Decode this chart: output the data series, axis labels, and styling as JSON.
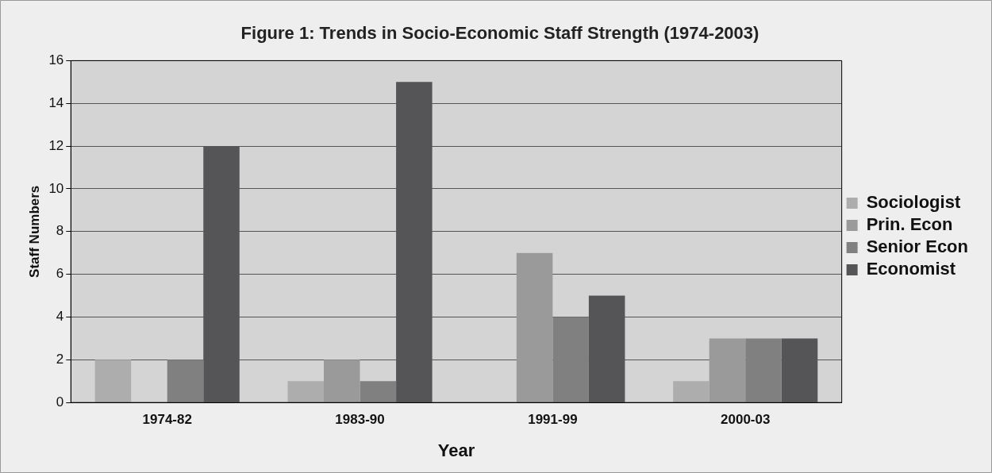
{
  "chart_data": {
    "type": "bar",
    "title": "Figure 1: Trends in Socio-Economic Staff Strength (1974-2003)",
    "xlabel": "Year",
    "ylabel": "Staff Numbers",
    "categories": [
      "1974-82",
      "1983-90",
      "1991-99",
      "2000-03"
    ],
    "series": [
      {
        "name": "Sociologist",
        "color": "#adadad",
        "values": [
          2,
          1,
          0,
          1
        ]
      },
      {
        "name": "Prin. Econ",
        "color": "#9a9a9a",
        "values": [
          0,
          2,
          7,
          3
        ]
      },
      {
        "name": "Senior Econ",
        "color": "#808080",
        "values": [
          2,
          1,
          4,
          3
        ]
      },
      {
        "name": "Economist",
        "color": "#555558",
        "values": [
          12,
          15,
          5,
          3
        ]
      }
    ],
    "ylim": [
      0,
      16
    ],
    "yticks": [
      0,
      2,
      4,
      6,
      8,
      10,
      12,
      14,
      16
    ],
    "grid": "y",
    "legend": "right"
  }
}
